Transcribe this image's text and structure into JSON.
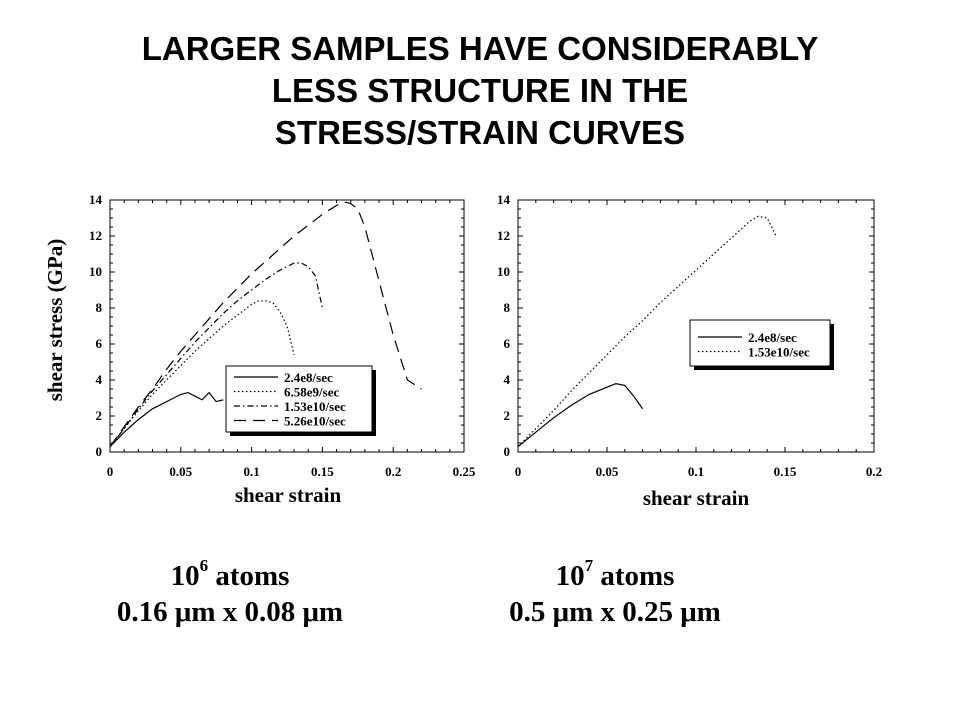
{
  "title": {
    "lines": [
      "LARGER SAMPLES HAVE CONSIDERABLY",
      "LESS STRUCTURE IN THE",
      "STRESS/STRAIN CURVES"
    ]
  },
  "captions": [
    {
      "mantissa": "10",
      "exponent": "6",
      "atoms_word": "atoms",
      "size": "0.16 μm x 0.08 μm"
    },
    {
      "mantissa": "10",
      "exponent": "7",
      "atoms_word": "atoms",
      "size": "0.5 μm x 0.25 μm"
    }
  ],
  "chart_data": [
    {
      "type": "line",
      "xlabel": "shear strain",
      "ylabel": "shear stress (GPa)",
      "xlim": [
        0,
        0.25
      ],
      "ylim": [
        0,
        14
      ],
      "x_ticks": [
        0,
        0.05,
        0.1,
        0.15,
        0.2,
        0.25
      ],
      "y_ticks": [
        0,
        2,
        4,
        6,
        8,
        10,
        12,
        14
      ],
      "legend_position": "bottom-right",
      "series": [
        {
          "name": "2.4e8/sec",
          "style": "solid",
          "x": [
            0,
            0.005,
            0.01,
            0.02,
            0.03,
            0.04,
            0.05,
            0.055,
            0.06,
            0.065,
            0.07,
            0.075,
            0.08
          ],
          "y": [
            0.3,
            0.7,
            1.1,
            1.8,
            2.4,
            2.8,
            3.2,
            3.3,
            3.1,
            2.9,
            3.3,
            2.8,
            2.9
          ]
        },
        {
          "name": "6.58e9/sec",
          "style": "dotted",
          "x": [
            0,
            0.01,
            0.02,
            0.03,
            0.04,
            0.05,
            0.06,
            0.07,
            0.08,
            0.09,
            0.1,
            0.105,
            0.11,
            0.115,
            0.12,
            0.125,
            0.13
          ],
          "y": [
            0.3,
            1.3,
            2.3,
            3.2,
            4.0,
            4.8,
            5.6,
            6.3,
            7.0,
            7.6,
            8.2,
            8.4,
            8.4,
            8.3,
            7.8,
            7.0,
            5.4
          ]
        },
        {
          "name": "1.53e10/sec",
          "style": "dash-dot",
          "x": [
            0,
            0.01,
            0.02,
            0.03,
            0.04,
            0.05,
            0.06,
            0.07,
            0.08,
            0.09,
            0.1,
            0.11,
            0.12,
            0.13,
            0.135,
            0.14,
            0.145,
            0.15
          ],
          "y": [
            0.3,
            1.3,
            2.4,
            3.4,
            4.3,
            5.2,
            6.1,
            6.9,
            7.7,
            8.4,
            9.0,
            9.6,
            10.1,
            10.5,
            10.5,
            10.3,
            9.8,
            8.0
          ]
        },
        {
          "name": "5.26e10/sec",
          "style": "dashed",
          "x": [
            0,
            0.01,
            0.02,
            0.03,
            0.04,
            0.05,
            0.06,
            0.07,
            0.08,
            0.09,
            0.1,
            0.11,
            0.12,
            0.13,
            0.14,
            0.15,
            0.16,
            0.165,
            0.17,
            0.175,
            0.18,
            0.19,
            0.2,
            0.21,
            0.22
          ],
          "y": [
            0.3,
            1.4,
            2.5,
            3.5,
            4.6,
            5.6,
            6.5,
            7.4,
            8.3,
            9.1,
            9.9,
            10.6,
            11.3,
            12.0,
            12.6,
            13.2,
            13.7,
            13.9,
            13.8,
            13.5,
            12.5,
            9.5,
            6.5,
            4.0,
            3.5
          ]
        }
      ]
    },
    {
      "type": "line",
      "xlabel": "shear strain",
      "ylabel": "",
      "xlim": [
        0,
        0.2
      ],
      "ylim": [
        0,
        14
      ],
      "x_ticks": [
        0,
        0.05,
        0.1,
        0.15,
        0.2
      ],
      "y_ticks": [
        0,
        2,
        4,
        6,
        8,
        10,
        12,
        14
      ],
      "legend_position": "center-right",
      "series": [
        {
          "name": "2.4e8/sec",
          "style": "solid",
          "x": [
            0,
            0.01,
            0.02,
            0.03,
            0.04,
            0.05,
            0.055,
            0.06,
            0.065,
            0.07
          ],
          "y": [
            0.3,
            1.1,
            1.9,
            2.6,
            3.2,
            3.6,
            3.8,
            3.7,
            3.1,
            2.4
          ]
        },
        {
          "name": "1.53e10/sec",
          "style": "dotted",
          "x": [
            0,
            0.01,
            0.02,
            0.03,
            0.04,
            0.05,
            0.06,
            0.07,
            0.08,
            0.09,
            0.1,
            0.11,
            0.12,
            0.13,
            0.135,
            0.14,
            0.145
          ],
          "y": [
            0.3,
            1.3,
            2.3,
            3.4,
            4.4,
            5.4,
            6.4,
            7.3,
            8.3,
            9.2,
            10.1,
            11.0,
            11.9,
            12.8,
            13.1,
            13.0,
            12.0
          ]
        }
      ]
    }
  ]
}
